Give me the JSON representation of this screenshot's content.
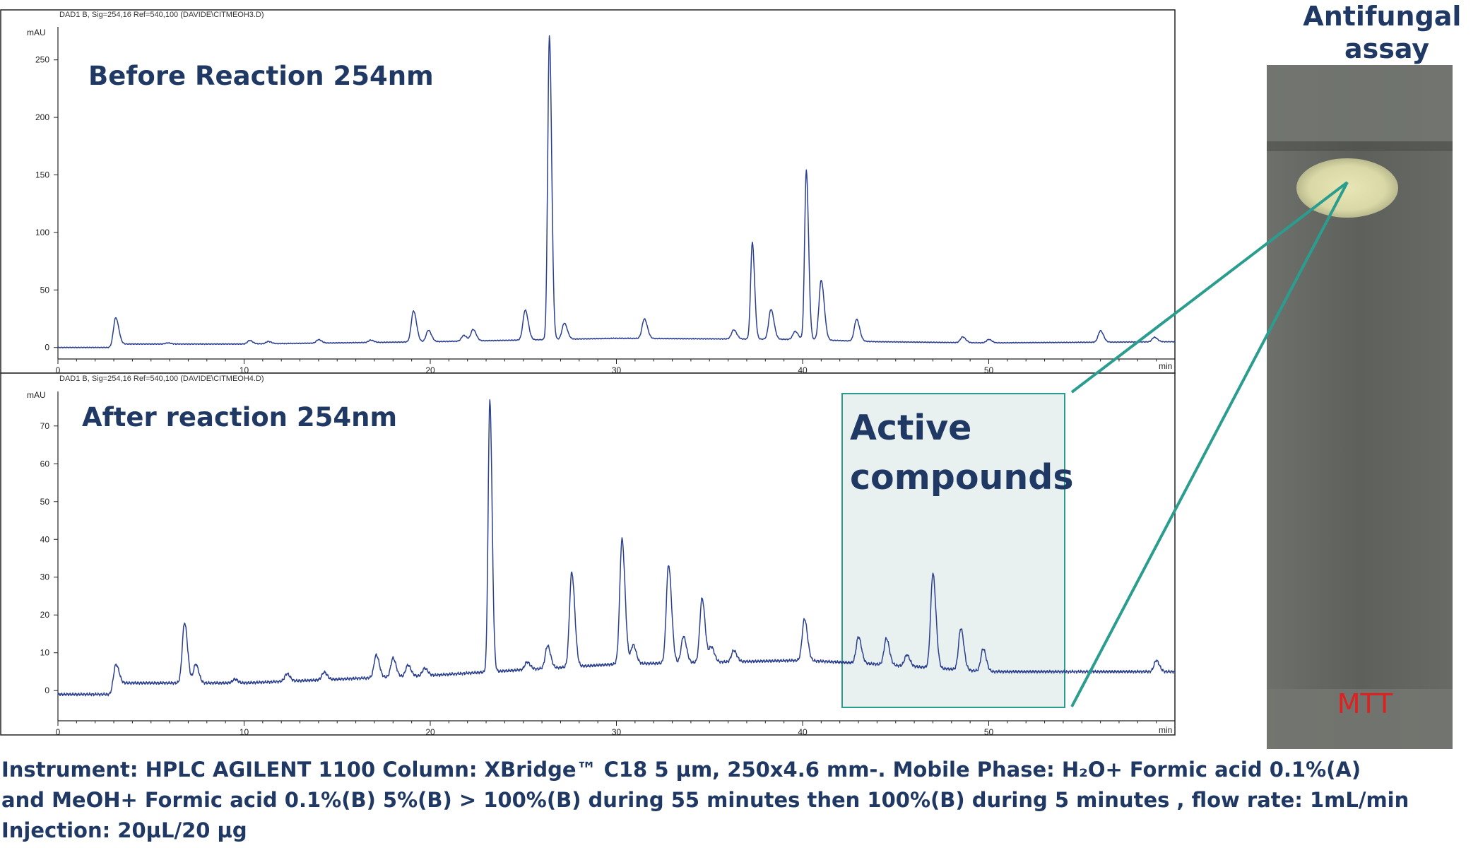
{
  "chart_data": [
    {
      "type": "line",
      "header": "DAD1 B, Sig=254,16 Ref=540,100 (DAVIDE\\CITMEOH3.D)",
      "title": "Before Reaction 254nm",
      "ylabel": "mAU",
      "xlabel": "min",
      "xlim": [
        0,
        60
      ],
      "ylim": [
        -10,
        275
      ],
      "x_ticks": [
        0,
        10,
        20,
        30,
        40,
        50
      ],
      "y_ticks": [
        0,
        50,
        100,
        150,
        200,
        250
      ],
      "line_color": "#2b3f8f",
      "baseline": [
        [
          0,
          0
        ],
        [
          2.8,
          0
        ],
        [
          3.3,
          3
        ],
        [
          10,
          3
        ],
        [
          20,
          5
        ],
        [
          30,
          8
        ],
        [
          40,
          7
        ],
        [
          44,
          5
        ],
        [
          50,
          4
        ],
        [
          60,
          5
        ]
      ],
      "peaks": [
        {
          "rt": 3.1,
          "height": 24
        },
        {
          "rt": 5.9,
          "height": 1
        },
        {
          "rt": 10.3,
          "height": 3
        },
        {
          "rt": 11.3,
          "height": 2
        },
        {
          "rt": 14.0,
          "height": 3
        },
        {
          "rt": 16.8,
          "height": 2
        },
        {
          "rt": 19.1,
          "height": 27
        },
        {
          "rt": 19.9,
          "height": 10
        },
        {
          "rt": 21.8,
          "height": 5
        },
        {
          "rt": 22.3,
          "height": 10
        },
        {
          "rt": 25.1,
          "height": 26
        },
        {
          "rt": 26.4,
          "height": 264
        },
        {
          "rt": 27.2,
          "height": 14
        },
        {
          "rt": 31.5,
          "height": 17
        },
        {
          "rt": 36.3,
          "height": 8
        },
        {
          "rt": 37.3,
          "height": 84
        },
        {
          "rt": 38.3,
          "height": 26
        },
        {
          "rt": 39.6,
          "height": 7
        },
        {
          "rt": 40.2,
          "height": 147
        },
        {
          "rt": 41.0,
          "height": 52
        },
        {
          "rt": 42.9,
          "height": 19
        },
        {
          "rt": 48.6,
          "height": 5
        },
        {
          "rt": 50.0,
          "height": 3
        },
        {
          "rt": 56.0,
          "height": 10
        },
        {
          "rt": 58.9,
          "height": 4
        }
      ]
    },
    {
      "type": "line",
      "header": "DAD1 B, Sig=254,16 Ref=540,100 (DAVIDE\\CITMEOH4.D)",
      "title": "After reaction 254nm",
      "ylabel": "mAU",
      "xlabel": "min",
      "xlim": [
        0,
        60
      ],
      "ylim": [
        -8,
        78
      ],
      "x_ticks": [
        0,
        10,
        20,
        30,
        40,
        50
      ],
      "y_ticks": [
        0,
        10,
        20,
        30,
        40,
        50,
        60,
        70
      ],
      "line_color": "#2b3f8f",
      "baseline": [
        [
          0,
          -1
        ],
        [
          2.8,
          -1
        ],
        [
          3.3,
          2
        ],
        [
          10,
          2
        ],
        [
          20,
          4
        ],
        [
          30,
          7
        ],
        [
          40,
          8
        ],
        [
          44,
          7
        ],
        [
          50,
          5
        ],
        [
          60,
          5
        ]
      ],
      "peaks": [
        {
          "rt": 3.1,
          "height": 6
        },
        {
          "rt": 6.8,
          "height": 16
        },
        {
          "rt": 7.4,
          "height": 5
        },
        {
          "rt": 9.5,
          "height": 1
        },
        {
          "rt": 12.3,
          "height": 2
        },
        {
          "rt": 14.3,
          "height": 2
        },
        {
          "rt": 17.1,
          "height": 6
        },
        {
          "rt": 18.0,
          "height": 5
        },
        {
          "rt": 18.8,
          "height": 3
        },
        {
          "rt": 19.7,
          "height": 2
        },
        {
          "rt": 23.2,
          "height": 72
        },
        {
          "rt": 25.2,
          "height": 2
        },
        {
          "rt": 26.3,
          "height": 6
        },
        {
          "rt": 27.6,
          "height": 25
        },
        {
          "rt": 30.3,
          "height": 33
        },
        {
          "rt": 30.9,
          "height": 5
        },
        {
          "rt": 32.8,
          "height": 26
        },
        {
          "rt": 33.6,
          "height": 7
        },
        {
          "rt": 34.6,
          "height": 17
        },
        {
          "rt": 35.1,
          "height": 4
        },
        {
          "rt": 36.3,
          "height": 3
        },
        {
          "rt": 40.1,
          "height": 11
        },
        {
          "rt": 43.0,
          "height": 7
        },
        {
          "rt": 44.5,
          "height": 7
        },
        {
          "rt": 45.6,
          "height": 3
        },
        {
          "rt": 47.0,
          "height": 25
        },
        {
          "rt": 48.5,
          "height": 11
        },
        {
          "rt": 49.7,
          "height": 6
        },
        {
          "rt": 59.0,
          "height": 3
        }
      ]
    }
  ],
  "annotation": {
    "label_lines": [
      "Active",
      "compounds"
    ],
    "x_range": [
      42.5,
      54.5
    ],
    "box_color": "#2a9d8f",
    "box_fill": "#e9f1f0"
  },
  "plate": {
    "title_lines": [
      "Antifungal",
      "assay"
    ],
    "label": "MTT",
    "label_color": "#e02020"
  },
  "caption_lines": [
    "Instrument: HPLC AGILENT 1100 Column: XBridge™ C18 5 µm, 250x4.6 mm-. Mobile Phase: H₂O+ Formic acid 0.1%(A)",
    "and MeOH+ Formic acid 0.1%(B) 5%(B) > 100%(B) during 55 minutes then 100%(B) during 5 minutes , flow rate: 1mL/min",
    "Injection: 20µL/20 µg"
  ]
}
